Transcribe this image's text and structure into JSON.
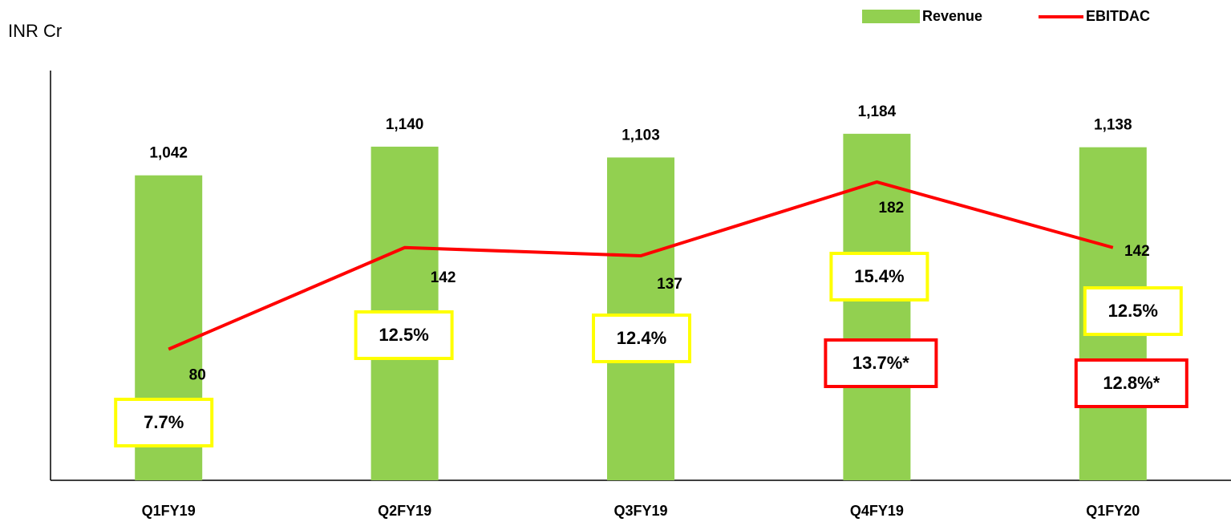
{
  "chart_data": {
    "type": "combo",
    "title": "INR Cr",
    "categories": [
      "Q1FY19",
      "Q2FY19",
      "Q3FY19",
      "Q4FY19",
      "Q1FY20"
    ],
    "series": [
      {
        "name": "Revenue",
        "type": "bar",
        "color": "#92d050",
        "values": [
          1042,
          1140,
          1103,
          1184,
          1138
        ],
        "value_labels": [
          "1,042",
          "1,140",
          "1,103",
          "1,184",
          "1,138"
        ]
      },
      {
        "name": "EBITDAC",
        "type": "line",
        "color": "#ff0000",
        "axis": "y2",
        "values": [
          80,
          142,
          137,
          182,
          142
        ]
      }
    ],
    "ylim": [
      0,
      1400
    ],
    "y2lim": [
      0,
      250
    ],
    "margin_labels": [
      "7.7%",
      "12.5%",
      "12.4%",
      "15.4%",
      "12.5%"
    ],
    "margin_box_color": "#ffff00",
    "adjusted_margin_labels": [
      null,
      null,
      null,
      "13.7%*",
      "12.8%*"
    ],
    "adjusted_box_color": "#ff0000",
    "legend": "top-right"
  }
}
